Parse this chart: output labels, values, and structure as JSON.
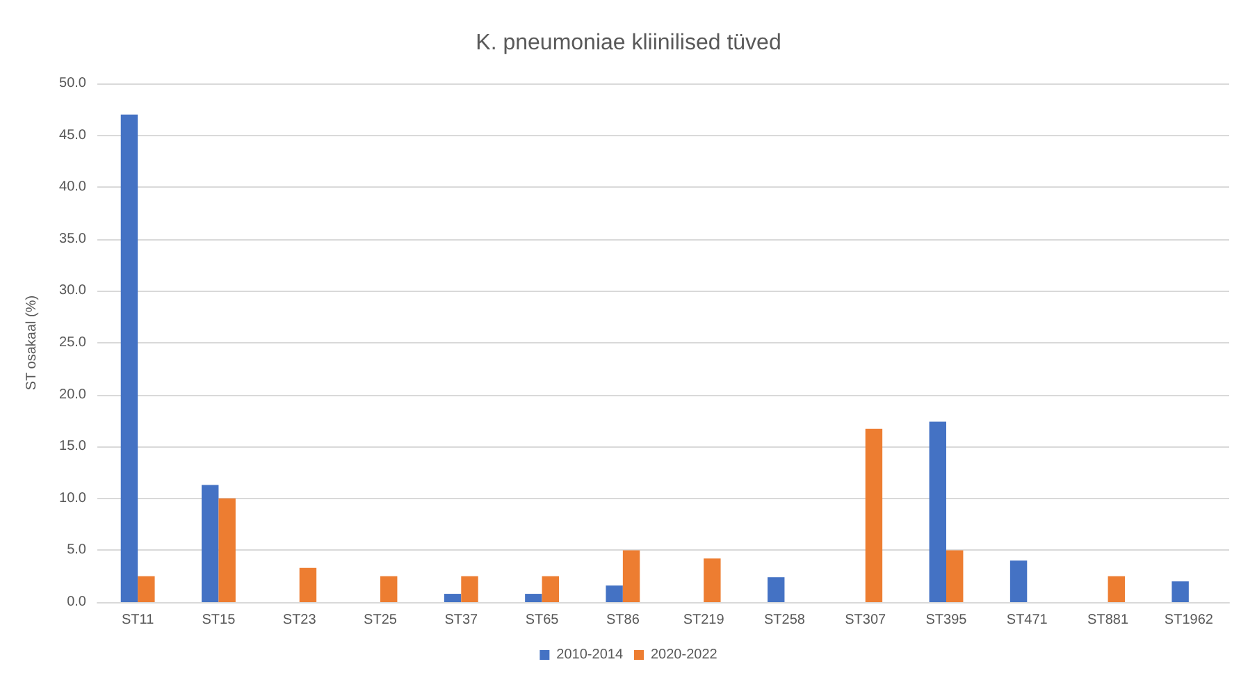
{
  "chart_data": {
    "type": "bar",
    "title": "K. pneumoniae kliinilised tüved",
    "ylabel": "ST osakaal (%)",
    "categories": [
      "ST11",
      "ST15",
      "ST23",
      "ST25",
      "ST37",
      "ST65",
      "ST86",
      "ST219",
      "ST258",
      "ST307",
      "ST395",
      "ST471",
      "ST881",
      "ST1962"
    ],
    "series": [
      {
        "name": "2010-2014",
        "color": "#4472c4",
        "values": [
          47.0,
          11.3,
          null,
          null,
          0.8,
          0.8,
          1.6,
          null,
          2.4,
          null,
          17.4,
          4.0,
          null,
          2.0
        ]
      },
      {
        "name": "2020-2022",
        "color": "#ed7d31",
        "values": [
          2.5,
          10.0,
          3.3,
          2.5,
          2.5,
          2.5,
          5.0,
          4.2,
          null,
          16.7,
          5.0,
          null,
          2.5,
          null
        ]
      }
    ],
    "ylim": [
      0,
      50
    ],
    "yticks": [
      {
        "value": 0,
        "label": "0.0"
      },
      {
        "value": 5,
        "label": "5.0"
      },
      {
        "value": 10,
        "label": "10.0"
      },
      {
        "value": 15,
        "label": "15.0"
      },
      {
        "value": 20,
        "label": "20.0"
      },
      {
        "value": 25,
        "label": "25.0"
      },
      {
        "value": 30,
        "label": "30.0"
      },
      {
        "value": 35,
        "label": "35.0"
      },
      {
        "value": 40,
        "label": "40.0"
      },
      {
        "value": 45,
        "label": "45.0"
      },
      {
        "value": 50,
        "label": "50.0"
      }
    ],
    "grid": "y",
    "legend": "bottom"
  }
}
